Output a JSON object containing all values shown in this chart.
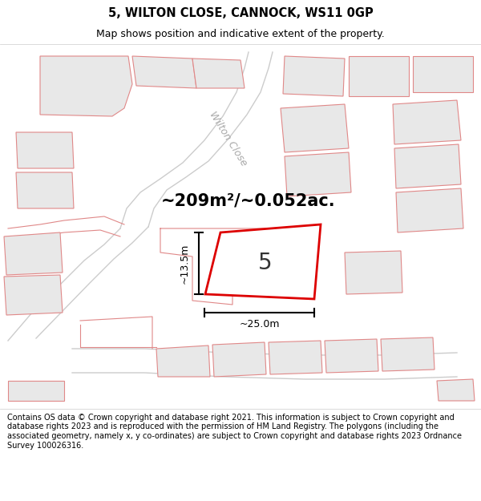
{
  "title": "5, WILTON CLOSE, CANNOCK, WS11 0GP",
  "subtitle": "Map shows position and indicative extent of the property.",
  "footer": "Contains OS data © Crown copyright and database right 2021. This information is subject to Crown copyright and database rights 2023 and is reproduced with the permission of HM Land Registry. The polygons (including the associated geometry, namely x, y co-ordinates) are subject to Crown copyright and database rights 2023 Ordnance Survey 100026316.",
  "area_text": "~209m²/~0.052ac.",
  "dim_h": "~13.5m",
  "dim_w": "~25.0m",
  "street_label": "Wilton Close",
  "property_number": "5",
  "bg_color": "#ffffff",
  "building_fill": "#e8e8e8",
  "plot_line_color": "#e08888",
  "road_line_color": "#cccccc",
  "highlight_color": "#dd0000",
  "title_fontsize": 10.5,
  "subtitle_fontsize": 9,
  "footer_fontsize": 7,
  "area_fontsize": 15,
  "dim_fontsize": 9,
  "street_fontsize": 9,
  "prop_num_fontsize": 20
}
